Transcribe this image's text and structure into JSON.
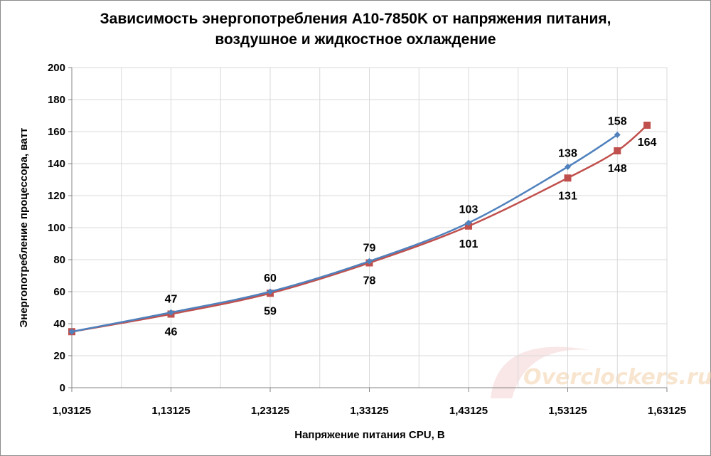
{
  "chart_data": {
    "type": "line",
    "title_lines": [
      "Зависимость энергопотребления  A10-7850K от напряжения питания,",
      "воздушное и жидкостное охлаждение"
    ],
    "xlabel": "Напряжение питания CPU, В",
    "ylabel": "Энергопотребление процессора, ватт",
    "xlim": [
      1.03125,
      1.63125
    ],
    "ylim": [
      0,
      200
    ],
    "x_ticks": [
      1.03125,
      1.13125,
      1.23125,
      1.33125,
      1.43125,
      1.53125,
      1.63125
    ],
    "x_tick_labels": [
      "1,03125",
      "1,13125",
      "1,23125",
      "1,33125",
      "1,43125",
      "1,53125",
      "1,63125"
    ],
    "y_ticks": [
      0,
      20,
      40,
      60,
      80,
      100,
      120,
      140,
      160,
      180,
      200
    ],
    "y_tick_labels": [
      "0",
      "20",
      "40",
      "60",
      "80",
      "100",
      "120",
      "140",
      "160",
      "180",
      "200"
    ],
    "grid": true,
    "legend": "none",
    "series": [
      {
        "color": "#4f81bd",
        "marker": "diamond",
        "x": [
          1.03125,
          1.13125,
          1.23125,
          1.33125,
          1.43125,
          1.53125,
          1.58125
        ],
        "y": [
          35,
          47,
          60,
          79,
          103,
          138,
          158
        ],
        "labels": [
          "",
          "47",
          "60",
          "79",
          "103",
          "138",
          "158"
        ],
        "label_position": "above"
      },
      {
        "color": "#c0504d",
        "marker": "square",
        "x": [
          1.03125,
          1.13125,
          1.23125,
          1.33125,
          1.43125,
          1.53125,
          1.58125,
          1.61125
        ],
        "y": [
          35,
          46,
          59,
          78,
          101,
          131,
          148,
          164
        ],
        "labels": [
          "",
          "46",
          "59",
          "78",
          "101",
          "131",
          "148",
          "164"
        ],
        "label_position": "below"
      }
    ]
  },
  "watermark": {
    "text": "Overclockers.ru"
  }
}
